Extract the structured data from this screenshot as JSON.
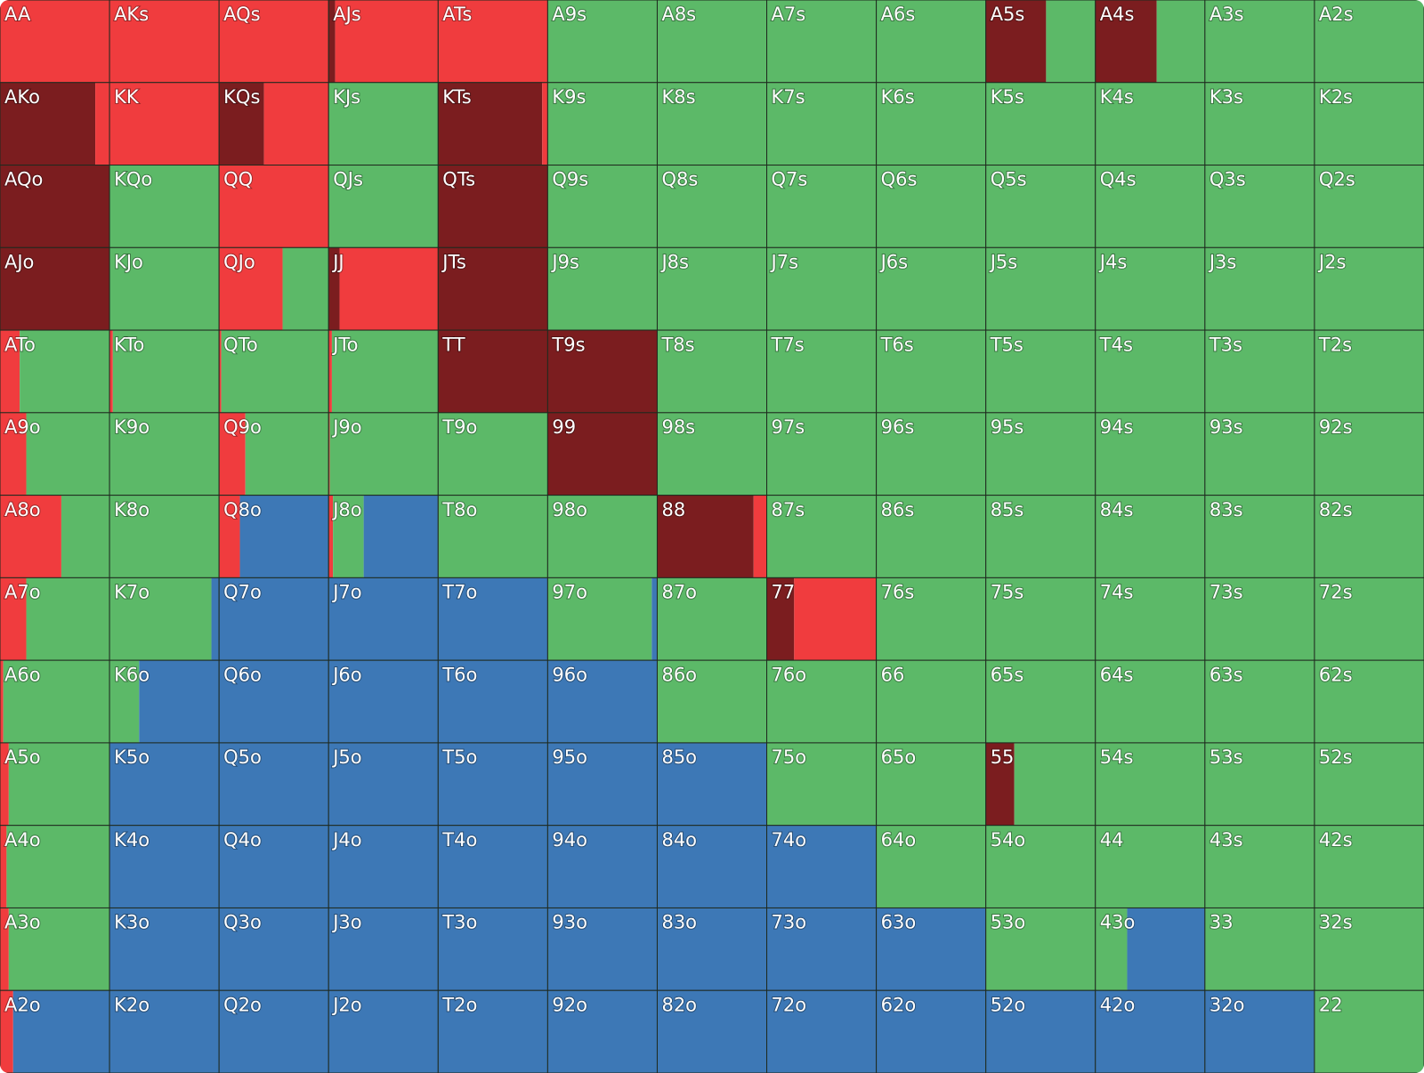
{
  "grid": {
    "colors": [
      "#7b1d1f",
      "#f03c3e",
      "#5cb968",
      "#3d78b6"
    ],
    "labels": [
      [
        "AA",
        "AKs",
        "AQs",
        "AJs",
        "ATs",
        "A9s",
        "A8s",
        "A7s",
        "A6s",
        "A5s",
        "A4s",
        "A3s",
        "A2s"
      ],
      [
        "AKo",
        "KK",
        "KQs",
        "KJs",
        "KTs",
        "K9s",
        "K8s",
        "K7s",
        "K6s",
        "K5s",
        "K4s",
        "K3s",
        "K2s"
      ],
      [
        "AQo",
        "KQo",
        "QQ",
        "QJs",
        "QTs",
        "Q9s",
        "Q8s",
        "Q7s",
        "Q6s",
        "Q5s",
        "Q4s",
        "Q3s",
        "Q2s"
      ],
      [
        "AJo",
        "KJo",
        "QJo",
        "JJ",
        "JTs",
        "J9s",
        "J8s",
        "J7s",
        "J6s",
        "J5s",
        "J4s",
        "J3s",
        "J2s"
      ],
      [
        "ATo",
        "KTo",
        "QTo",
        "JTo",
        "TT",
        "T9s",
        "T8s",
        "T7s",
        "T6s",
        "T5s",
        "T4s",
        "T3s",
        "T2s"
      ],
      [
        "A9o",
        "K9o",
        "Q9o",
        "J9o",
        "T9o",
        "99",
        "98s",
        "97s",
        "96s",
        "95s",
        "94s",
        "93s",
        "92s"
      ],
      [
        "A8o",
        "K8o",
        "Q8o",
        "J8o",
        "T8o",
        "98o",
        "88",
        "87s",
        "86s",
        "85s",
        "84s",
        "83s",
        "82s"
      ],
      [
        "A7o",
        "K7o",
        "Q7o",
        "J7o",
        "T7o",
        "97o",
        "87o",
        "77",
        "76s",
        "75s",
        "74s",
        "73s",
        "72s"
      ],
      [
        "A6o",
        "K6o",
        "Q6o",
        "J6o",
        "T6o",
        "96o",
        "86o",
        "76o",
        "66",
        "65s",
        "64s",
        "63s",
        "62s"
      ],
      [
        "A5o",
        "K5o",
        "Q5o",
        "J5o",
        "T5o",
        "95o",
        "85o",
        "75o",
        "65o",
        "55",
        "54s",
        "53s",
        "52s"
      ],
      [
        "A4o",
        "K4o",
        "Q4o",
        "J4o",
        "T4o",
        "94o",
        "84o",
        "74o",
        "64o",
        "54o",
        "44",
        "43s",
        "42s"
      ],
      [
        "A3o",
        "K3o",
        "Q3o",
        "J3o",
        "T3o",
        "93o",
        "83o",
        "73o",
        "63o",
        "53o",
        "43o",
        "33",
        "32s"
      ],
      [
        "A2o",
        "K2o",
        "Q2o",
        "J2o",
        "T2o",
        "92o",
        "82o",
        "72o",
        "62o",
        "52o",
        "42o",
        "32o",
        "22"
      ]
    ],
    "freqs": [
      [
        [
          0,
          100,
          0,
          0
        ],
        [
          0,
          100,
          0,
          0
        ],
        [
          0,
          100,
          0,
          0
        ],
        [
          6,
          94,
          0,
          0
        ],
        [
          0,
          100,
          0,
          0
        ],
        [
          0,
          0,
          100,
          0
        ],
        [
          0,
          0,
          100,
          0
        ],
        [
          0,
          0,
          100,
          0
        ],
        [
          0,
          0,
          100,
          0
        ],
        [
          55,
          0,
          45,
          0
        ],
        [
          56,
          0,
          44,
          0
        ],
        [
          0,
          0,
          100,
          0
        ],
        [
          0,
          0,
          100,
          0
        ]
      ],
      [
        [
          87,
          13,
          0,
          0
        ],
        [
          0,
          100,
          0,
          0
        ],
        [
          41,
          59,
          0,
          0
        ],
        [
          0,
          0,
          100,
          0
        ],
        [
          95,
          5,
          0,
          0
        ],
        [
          0,
          0,
          100,
          0
        ],
        [
          0,
          0,
          100,
          0
        ],
        [
          0,
          0,
          100,
          0
        ],
        [
          0,
          0,
          100,
          0
        ],
        [
          0,
          0,
          100,
          0
        ],
        [
          0,
          0,
          100,
          0
        ],
        [
          0,
          0,
          100,
          0
        ],
        [
          0,
          0,
          100,
          0
        ]
      ],
      [
        [
          100,
          0,
          0,
          0
        ],
        [
          0,
          0,
          100,
          0
        ],
        [
          0,
          100,
          0,
          0
        ],
        [
          0,
          0,
          100,
          0
        ],
        [
          100,
          0,
          0,
          0
        ],
        [
          0,
          0,
          100,
          0
        ],
        [
          0,
          0,
          100,
          0
        ],
        [
          0,
          0,
          100,
          0
        ],
        [
          0,
          0,
          100,
          0
        ],
        [
          0,
          0,
          100,
          0
        ],
        [
          0,
          0,
          100,
          0
        ],
        [
          0,
          0,
          100,
          0
        ],
        [
          0,
          0,
          100,
          0
        ]
      ],
      [
        [
          100,
          0,
          0,
          0
        ],
        [
          0,
          0,
          100,
          0
        ],
        [
          0,
          58,
          42,
          0
        ],
        [
          10,
          90,
          0,
          0
        ],
        [
          100,
          0,
          0,
          0
        ],
        [
          0,
          0,
          100,
          0
        ],
        [
          0,
          0,
          100,
          0
        ],
        [
          0,
          0,
          100,
          0
        ],
        [
          0,
          0,
          100,
          0
        ],
        [
          0,
          0,
          100,
          0
        ],
        [
          0,
          0,
          100,
          0
        ],
        [
          0,
          0,
          100,
          0
        ],
        [
          0,
          0,
          100,
          0
        ]
      ],
      [
        [
          0,
          18,
          82,
          0
        ],
        [
          0,
          3,
          97,
          0
        ],
        [
          0,
          2,
          98,
          0
        ],
        [
          0,
          3,
          97,
          0
        ],
        [
          100,
          0,
          0,
          0
        ],
        [
          100,
          0,
          0,
          0
        ],
        [
          0,
          0,
          100,
          0
        ],
        [
          0,
          0,
          100,
          0
        ],
        [
          0,
          0,
          100,
          0
        ],
        [
          0,
          0,
          100,
          0
        ],
        [
          0,
          0,
          100,
          0
        ],
        [
          0,
          0,
          100,
          0
        ],
        [
          0,
          0,
          100,
          0
        ]
      ],
      [
        [
          0,
          24,
          76,
          0
        ],
        [
          0,
          0,
          100,
          0
        ],
        [
          0,
          24,
          76,
          0
        ],
        [
          0,
          1,
          99,
          0
        ],
        [
          0,
          0,
          100,
          0
        ],
        [
          100,
          0,
          0,
          0
        ],
        [
          0,
          0,
          100,
          0
        ],
        [
          0,
          0,
          100,
          0
        ],
        [
          0,
          0,
          100,
          0
        ],
        [
          0,
          0,
          100,
          0
        ],
        [
          0,
          0,
          100,
          0
        ],
        [
          0,
          0,
          100,
          0
        ],
        [
          0,
          0,
          100,
          0
        ]
      ],
      [
        [
          0,
          56,
          44,
          0
        ],
        [
          0,
          0,
          100,
          0
        ],
        [
          0,
          19,
          0,
          81
        ],
        [
          0,
          4,
          28,
          68
        ],
        [
          0,
          0,
          100,
          0
        ],
        [
          0,
          0,
          100,
          0
        ],
        [
          88,
          12,
          0,
          0
        ],
        [
          0,
          0,
          100,
          0
        ],
        [
          0,
          0,
          100,
          0
        ],
        [
          0,
          0,
          100,
          0
        ],
        [
          0,
          0,
          100,
          0
        ],
        [
          0,
          0,
          100,
          0
        ],
        [
          0,
          0,
          100,
          0
        ]
      ],
      [
        [
          0,
          24,
          76,
          0
        ],
        [
          0,
          0,
          93,
          7
        ],
        [
          0,
          0,
          0,
          100
        ],
        [
          0,
          0,
          0,
          100
        ],
        [
          0,
          0,
          0,
          100
        ],
        [
          0,
          0,
          95,
          5
        ],
        [
          0,
          0,
          100,
          0
        ],
        [
          25,
          75,
          0,
          0
        ],
        [
          0,
          0,
          100,
          0
        ],
        [
          0,
          0,
          100,
          0
        ],
        [
          0,
          0,
          100,
          0
        ],
        [
          0,
          0,
          100,
          0
        ],
        [
          0,
          0,
          100,
          0
        ]
      ],
      [
        [
          0,
          3,
          97,
          0
        ],
        [
          0,
          0,
          27,
          73
        ],
        [
          0,
          0,
          0,
          100
        ],
        [
          0,
          0,
          0,
          100
        ],
        [
          0,
          0,
          0,
          100
        ],
        [
          0,
          0,
          0,
          100
        ],
        [
          0,
          0,
          100,
          0
        ],
        [
          0,
          0,
          100,
          0
        ],
        [
          0,
          0,
          100,
          0
        ],
        [
          0,
          0,
          100,
          0
        ],
        [
          0,
          0,
          100,
          0
        ],
        [
          0,
          0,
          100,
          0
        ],
        [
          0,
          0,
          100,
          0
        ]
      ],
      [
        [
          0,
          8,
          92,
          0
        ],
        [
          0,
          0,
          0,
          100
        ],
        [
          0,
          0,
          0,
          100
        ],
        [
          0,
          0,
          0,
          100
        ],
        [
          0,
          0,
          0,
          100
        ],
        [
          0,
          0,
          0,
          100
        ],
        [
          0,
          0,
          0,
          100
        ],
        [
          0,
          0,
          100,
          0
        ],
        [
          0,
          0,
          100,
          0
        ],
        [
          26,
          0,
          74,
          0
        ],
        [
          0,
          0,
          100,
          0
        ],
        [
          0,
          0,
          100,
          0
        ],
        [
          0,
          0,
          100,
          0
        ]
      ],
      [
        [
          0,
          6,
          94,
          0
        ],
        [
          0,
          0,
          0,
          100
        ],
        [
          0,
          0,
          0,
          100
        ],
        [
          0,
          0,
          0,
          100
        ],
        [
          0,
          0,
          0,
          100
        ],
        [
          0,
          0,
          0,
          100
        ],
        [
          0,
          0,
          0,
          100
        ],
        [
          0,
          0,
          0,
          100
        ],
        [
          0,
          0,
          100,
          0
        ],
        [
          0,
          0,
          100,
          0
        ],
        [
          0,
          0,
          100,
          0
        ],
        [
          0,
          0,
          100,
          0
        ],
        [
          0,
          0,
          100,
          0
        ]
      ],
      [
        [
          0,
          8,
          92,
          0
        ],
        [
          0,
          0,
          0,
          100
        ],
        [
          0,
          0,
          0,
          100
        ],
        [
          0,
          0,
          0,
          100
        ],
        [
          0,
          0,
          0,
          100
        ],
        [
          0,
          0,
          0,
          100
        ],
        [
          0,
          0,
          0,
          100
        ],
        [
          0,
          0,
          0,
          100
        ],
        [
          0,
          0,
          0,
          100
        ],
        [
          0,
          0,
          100,
          0
        ],
        [
          0,
          0,
          29,
          71
        ],
        [
          0,
          0,
          100,
          0
        ],
        [
          0,
          0,
          100,
          0
        ]
      ],
      [
        [
          0,
          12,
          0,
          88
        ],
        [
          0,
          0,
          0,
          100
        ],
        [
          0,
          0,
          0,
          100
        ],
        [
          0,
          0,
          0,
          100
        ],
        [
          0,
          0,
          0,
          100
        ],
        [
          0,
          0,
          0,
          100
        ],
        [
          0,
          0,
          0,
          100
        ],
        [
          0,
          0,
          0,
          100
        ],
        [
          0,
          0,
          0,
          100
        ],
        [
          0,
          0,
          0,
          100
        ],
        [
          0,
          0,
          0,
          100
        ],
        [
          0,
          0,
          0,
          100
        ],
        [
          0,
          0,
          100,
          0
        ]
      ]
    ]
  }
}
